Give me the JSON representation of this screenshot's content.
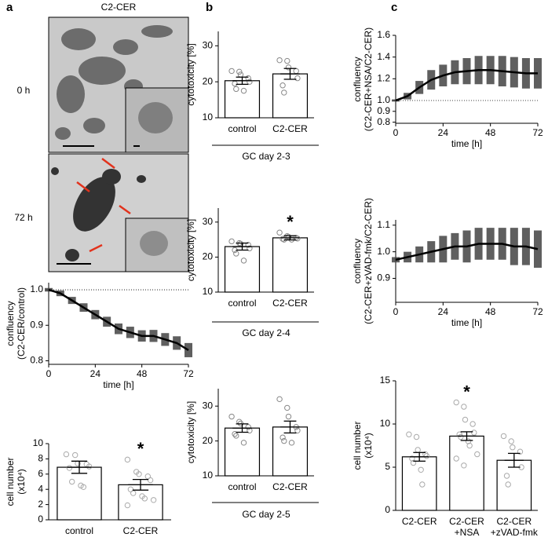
{
  "panels": {
    "a": {
      "label": "a",
      "title": "C2-CER",
      "rows": [
        "0 h",
        "72 h"
      ]
    },
    "b": {
      "label": "b"
    },
    "c": {
      "label": "c"
    }
  },
  "chart_data": [
    {
      "type": "line",
      "ylabel": [
        "confluency",
        "(C2-CER/control)"
      ],
      "xlabel": "time [h]",
      "x": [
        0,
        6,
        12,
        18,
        24,
        30,
        36,
        42,
        48,
        54,
        60,
        66,
        72
      ],
      "values": [
        1.0,
        0.99,
        0.97,
        0.95,
        0.93,
        0.91,
        0.89,
        0.88,
        0.87,
        0.87,
        0.86,
        0.85,
        0.83
      ],
      "errors": [
        0.005,
        0.008,
        0.01,
        0.012,
        0.013,
        0.014,
        0.015,
        0.016,
        0.016,
        0.017,
        0.018,
        0.019,
        0.02
      ],
      "xlim": [
        0,
        72
      ],
      "xticks": [
        0,
        24,
        48,
        72
      ],
      "ylim": [
        0.79,
        1.02
      ],
      "yticks": [
        0.8,
        0.9,
        {
          "value": 1,
          "label": "1.0"
        }
      ],
      "reference_line": 1,
      "color": "#000000",
      "error_color": "#444444"
    },
    {
      "type": "bar",
      "ylabel": [
        "cell number",
        "(x10⁴)"
      ],
      "categories": [
        "control",
        "C2-CER"
      ],
      "values": [
        6.9,
        4.6
      ],
      "errors": [
        0.8,
        0.7
      ],
      "points": [
        [
          8.6,
          8.5,
          7.4,
          7.3,
          7.0,
          6.8,
          5.0,
          4.5,
          4.3
        ],
        [
          7.9,
          6.3,
          6.0,
          5.7,
          5.2,
          4.0,
          3.5,
          3.1,
          2.8,
          2.6,
          1.9
        ]
      ],
      "ylim": [
        0,
        10
      ],
      "yticks": [
        0,
        2,
        4,
        6,
        8,
        10
      ],
      "annotations": [
        {
          "text": "*",
          "category": "C2-CER"
        }
      ],
      "point_color": "#aaaaaa"
    },
    {
      "type": "bar",
      "ylabel": [
        "cytotoxicity [%]"
      ],
      "categories": [
        "control",
        "C2-CER"
      ],
      "values": [
        20.3,
        22.2
      ],
      "errors": [
        1.0,
        1.5
      ],
      "points": [
        [
          23,
          22.8,
          22,
          21,
          20,
          19.5,
          18,
          17.5
        ],
        [
          26,
          25.8,
          24,
          23,
          21,
          19,
          17
        ]
      ],
      "ylim": [
        10,
        34
      ],
      "yticks": [
        10,
        20,
        30
      ],
      "group_label": "GC day 2-3",
      "point_color": "#888888"
    },
    {
      "type": "bar",
      "ylabel": [
        "cytotoxicity [%]"
      ],
      "categories": [
        "control",
        "C2-CER"
      ],
      "values": [
        23.0,
        25.5
      ],
      "errors": [
        1.0,
        0.6
      ],
      "points": [
        [
          24.5,
          24,
          23.8,
          23.5,
          22.5,
          22,
          21,
          19
        ],
        [
          27,
          26,
          25.8,
          25.5,
          25.3,
          25.2,
          25,
          25
        ]
      ],
      "ylim": [
        10,
        34
      ],
      "yticks": [
        10,
        20,
        30
      ],
      "group_label": "GC day 2-4",
      "annotations": [
        {
          "text": "*",
          "category": "C2-CER"
        }
      ],
      "point_color": "#888888"
    },
    {
      "type": "bar",
      "ylabel": [
        "cytotoxicity [%]"
      ],
      "categories": [
        "control",
        "C2-CER"
      ],
      "values": [
        23.7,
        24.0
      ],
      "errors": [
        1.2,
        1.7
      ],
      "points": [
        [
          27,
          25.5,
          25,
          24,
          23,
          22,
          21.5,
          19.5
        ],
        [
          32,
          29.5,
          27,
          24,
          23,
          21,
          20,
          19.5
        ]
      ],
      "ylim": [
        10,
        35
      ],
      "yticks": [
        10,
        20,
        30
      ],
      "group_label": "GC day 2-5",
      "point_color": "#888888"
    },
    {
      "type": "line",
      "ylabel": [
        "confluency",
        "(C2-CER+NSA/C2-CER)"
      ],
      "xlabel": "time [h]",
      "x": [
        0,
        6,
        12,
        18,
        24,
        30,
        36,
        42,
        48,
        54,
        60,
        66,
        72
      ],
      "values": [
        1.0,
        1.04,
        1.12,
        1.19,
        1.23,
        1.26,
        1.27,
        1.28,
        1.28,
        1.27,
        1.26,
        1.25,
        1.25
      ],
      "errors": [
        0.01,
        0.03,
        0.06,
        0.09,
        0.1,
        0.11,
        0.12,
        0.13,
        0.13,
        0.14,
        0.14,
        0.14,
        0.14
      ],
      "xlim": [
        0,
        72
      ],
      "xticks": [
        0,
        24,
        48,
        72
      ],
      "ylim": [
        0.79,
        1.6
      ],
      "yticks": [
        0.8,
        0.9,
        {
          "value": 1,
          "label": "1.0"
        },
        1.2,
        1.4,
        1.6
      ],
      "reference_line": 1,
      "color": "#000000",
      "error_color": "#444444"
    },
    {
      "type": "line",
      "ylabel": [
        "confluency",
        "(C2-CER+zVAD-fmk/C2-CER)"
      ],
      "xlabel": "time [h]",
      "x": [
        0,
        6,
        12,
        18,
        24,
        30,
        36,
        42,
        48,
        54,
        60,
        66,
        72
      ],
      "values": [
        0.97,
        0.98,
        0.99,
        1.0,
        1.01,
        1.02,
        1.02,
        1.03,
        1.03,
        1.03,
        1.02,
        1.02,
        1.01
      ],
      "errors": [
        0.01,
        0.02,
        0.03,
        0.04,
        0.05,
        0.05,
        0.06,
        0.06,
        0.06,
        0.06,
        0.07,
        0.07,
        0.07
      ],
      "xlim": [
        0,
        72
      ],
      "xticks": [
        0,
        24,
        48,
        72
      ],
      "ylim": [
        0.81,
        1.12
      ],
      "yticks": [
        0.9,
        {
          "value": 1,
          "label": "1.0"
        },
        1.1
      ],
      "color": "#000000",
      "error_color": "#444444"
    },
    {
      "type": "bar",
      "ylabel": [
        "cell number",
        "(x10⁴)"
      ],
      "categories": [
        [
          "C2-CER"
        ],
        [
          "C2-CER",
          "+NSA"
        ],
        [
          "C2-CER",
          "+zVAD-fmk"
        ]
      ],
      "values": [
        6.2,
        8.6,
        5.8
      ],
      "errors": [
        0.5,
        0.5,
        0.8
      ],
      "points": [
        [
          8.8,
          8.5,
          7.0,
          6.5,
          6.3,
          6.0,
          5.5,
          4.7,
          3.0
        ],
        [
          12.5,
          12,
          10.5,
          10,
          9,
          8.8,
          8.5,
          8,
          7.5,
          6.5,
          6,
          5.2
        ],
        [
          8.6,
          8.0,
          7.3,
          6.8,
          5.0,
          4.0,
          3.0
        ]
      ],
      "ylim": [
        0,
        15
      ],
      "yticks": [
        0,
        5,
        10,
        15
      ],
      "annotations": [
        {
          "text": "*",
          "category": "C2-CER +NSA"
        }
      ],
      "point_color": "#aaaaaa"
    }
  ]
}
